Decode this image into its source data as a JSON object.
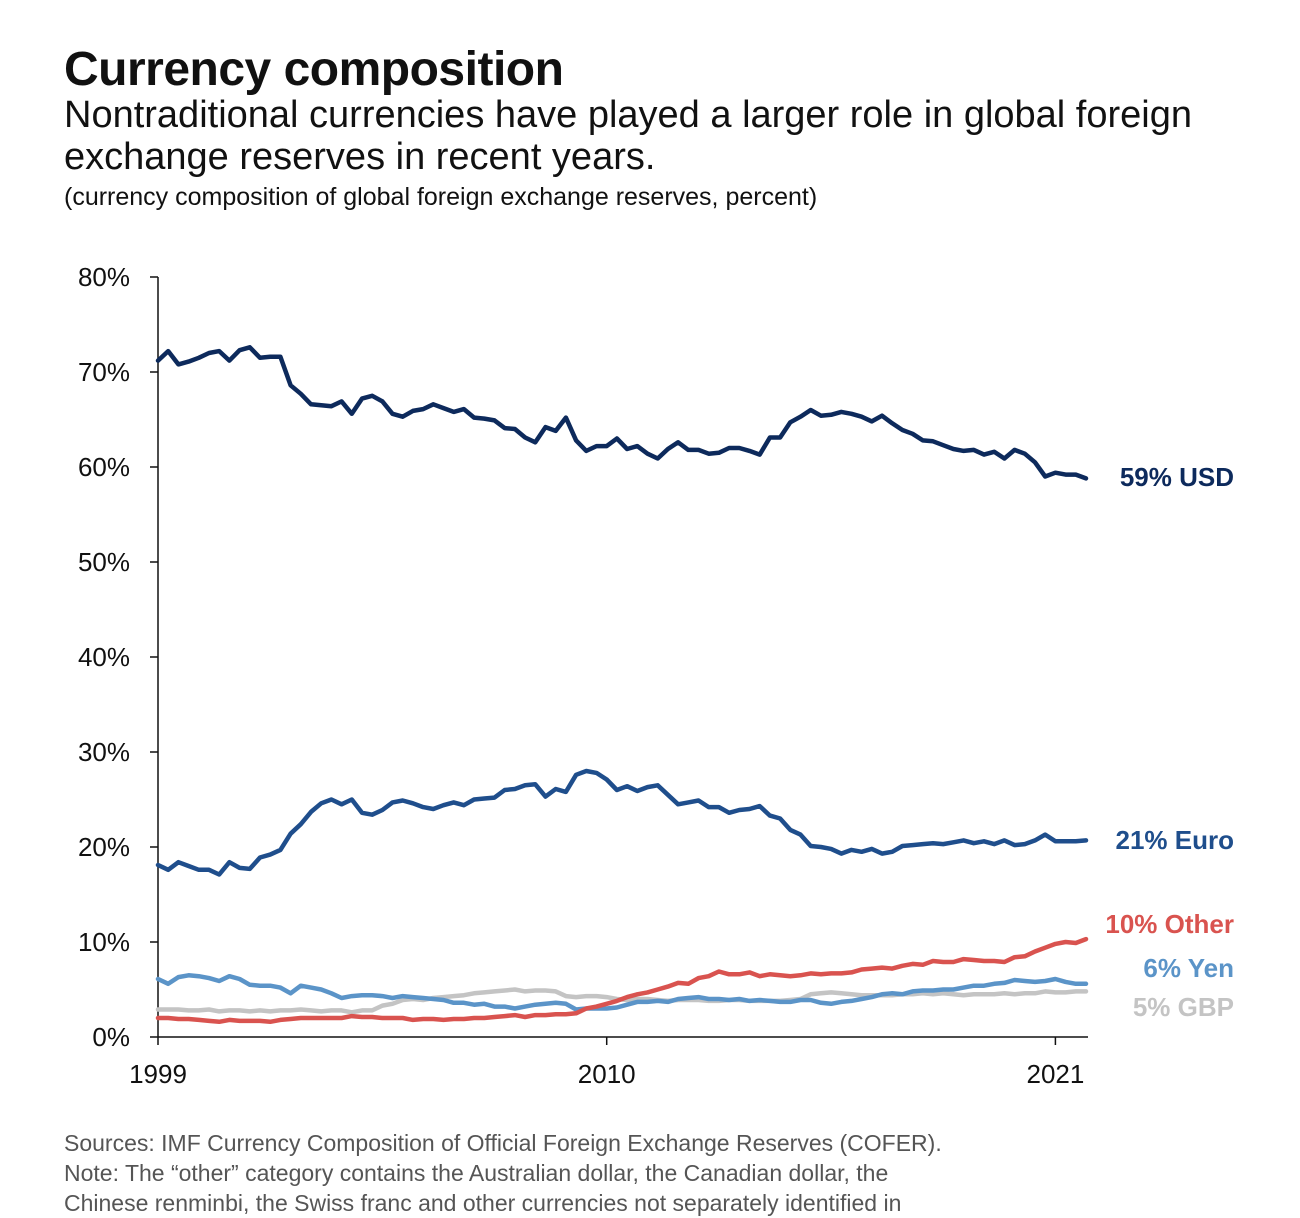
{
  "header": {
    "title": "Currency composition",
    "subtitle": "Nontraditional currencies have played a larger role in global foreign exchange reserves in recent years.",
    "unit_note": "(currency composition of global foreign exchange reserves, percent)"
  },
  "footer": {
    "sources": "Sources: IMF Currency Composition of Official Foreign Exchange Reserves (COFER).",
    "note_line1": "Note: The “other” category contains the Australian dollar, the Canadian dollar, the",
    "note_line2": "Chinese renminbi, the Swiss franc and other currencies not separately identified in"
  },
  "chart_data": {
    "type": "line",
    "title": "Currency composition",
    "xlabel": "",
    "ylabel": "",
    "x_ticks": [
      "1999",
      "2010",
      "2021"
    ],
    "y_ticks": [
      "0%",
      "10%",
      "20%",
      "30%",
      "40%",
      "50%",
      "60%",
      "70%",
      "80%"
    ],
    "ylim": [
      0,
      80
    ],
    "x_start": 1999,
    "x_step": 0.25,
    "series": [
      {
        "name": "USD",
        "label": "59% USD",
        "color": "#0d2a5c",
        "values": [
          71.2,
          72.2,
          70.8,
          71.1,
          71.5,
          72.0,
          72.2,
          71.2,
          72.3,
          72.6,
          71.5,
          71.6,
          71.6,
          68.6,
          67.7,
          66.6,
          66.5,
          66.4,
          66.9,
          65.6,
          67.2,
          67.5,
          66.9,
          65.6,
          65.3,
          65.9,
          66.1,
          66.6,
          66.2,
          65.8,
          66.1,
          65.2,
          65.1,
          64.9,
          64.1,
          64.0,
          63.1,
          62.6,
          64.2,
          63.8,
          65.2,
          62.8,
          61.7,
          62.2,
          62.2,
          63.0,
          61.9,
          62.2,
          61.4,
          60.9,
          61.9,
          62.6,
          61.8,
          61.8,
          61.4,
          61.5,
          62.0,
          62.0,
          61.7,
          61.3,
          63.1,
          63.1,
          64.7,
          65.3,
          66.0,
          65.4,
          65.5,
          65.8,
          65.6,
          65.3,
          64.8,
          65.4,
          64.6,
          63.9,
          63.5,
          62.8,
          62.7,
          62.3,
          61.9,
          61.7,
          61.8,
          61.3,
          61.6,
          60.9,
          61.8,
          61.4,
          60.5,
          59.0,
          59.4,
          59.2,
          59.2,
          58.8
        ]
      },
      {
        "name": "Euro",
        "label": "21% Euro",
        "color": "#1f4e8c",
        "values": [
          18.1,
          17.6,
          18.4,
          18.0,
          17.6,
          17.6,
          17.1,
          18.4,
          17.8,
          17.7,
          18.9,
          19.2,
          19.7,
          21.4,
          22.4,
          23.7,
          24.6,
          25.0,
          24.5,
          25.0,
          23.6,
          23.4,
          23.9,
          24.7,
          24.9,
          24.6,
          24.2,
          24.0,
          24.4,
          24.7,
          24.4,
          25.0,
          25.1,
          25.2,
          26.0,
          26.1,
          26.5,
          26.6,
          25.3,
          26.1,
          25.8,
          27.6,
          28.0,
          27.8,
          27.1,
          26.0,
          26.4,
          25.9,
          26.3,
          26.5,
          25.5,
          24.5,
          24.7,
          24.9,
          24.2,
          24.2,
          23.6,
          23.9,
          24.0,
          24.3,
          23.3,
          23.0,
          21.8,
          21.3,
          20.1,
          20.0,
          19.8,
          19.3,
          19.7,
          19.5,
          19.8,
          19.3,
          19.5,
          20.1,
          20.2,
          20.3,
          20.4,
          20.3,
          20.5,
          20.7,
          20.4,
          20.6,
          20.3,
          20.7,
          20.2,
          20.3,
          20.7,
          21.3,
          20.6,
          20.6,
          20.6,
          20.7
        ]
      },
      {
        "name": "Other",
        "label": "10% Other",
        "color": "#d9534f",
        "values": [
          2.0,
          2.0,
          1.9,
          1.9,
          1.8,
          1.7,
          1.6,
          1.8,
          1.7,
          1.7,
          1.7,
          1.6,
          1.8,
          1.9,
          2.0,
          2.0,
          2.0,
          2.0,
          2.0,
          2.2,
          2.1,
          2.1,
          2.0,
          2.0,
          2.0,
          1.8,
          1.9,
          1.9,
          1.8,
          1.9,
          1.9,
          2.0,
          2.0,
          2.1,
          2.2,
          2.3,
          2.1,
          2.3,
          2.3,
          2.4,
          2.4,
          2.5,
          3.0,
          3.2,
          3.5,
          3.8,
          4.2,
          4.5,
          4.7,
          5.0,
          5.3,
          5.7,
          5.6,
          6.2,
          6.4,
          6.9,
          6.6,
          6.6,
          6.8,
          6.4,
          6.6,
          6.5,
          6.4,
          6.5,
          6.7,
          6.6,
          6.7,
          6.7,
          6.8,
          7.1,
          7.2,
          7.3,
          7.2,
          7.5,
          7.7,
          7.6,
          8.0,
          7.9,
          7.9,
          8.2,
          8.1,
          8.0,
          8.0,
          7.9,
          8.4,
          8.5,
          9.0,
          9.4,
          9.8,
          10.0,
          9.9,
          10.3
        ]
      },
      {
        "name": "Yen",
        "label": "6% Yen",
        "color": "#5b94c8",
        "values": [
          6.1,
          5.6,
          6.3,
          6.5,
          6.4,
          6.2,
          5.9,
          6.4,
          6.1,
          5.5,
          5.4,
          5.4,
          5.2,
          4.6,
          5.4,
          5.2,
          5.0,
          4.6,
          4.1,
          4.3,
          4.4,
          4.4,
          4.3,
          4.1,
          4.3,
          4.2,
          4.1,
          4.0,
          3.9,
          3.6,
          3.6,
          3.4,
          3.5,
          3.2,
          3.2,
          3.0,
          3.2,
          3.4,
          3.5,
          3.6,
          3.5,
          2.9,
          3.0,
          3.0,
          3.0,
          3.1,
          3.4,
          3.7,
          3.7,
          3.8,
          3.7,
          4.0,
          4.1,
          4.2,
          4.0,
          4.0,
          3.9,
          4.0,
          3.8,
          3.9,
          3.8,
          3.7,
          3.7,
          3.9,
          3.9,
          3.6,
          3.5,
          3.7,
          3.8,
          4.0,
          4.2,
          4.5,
          4.6,
          4.5,
          4.8,
          4.9,
          4.9,
          5.0,
          5.0,
          5.2,
          5.4,
          5.4,
          5.6,
          5.7,
          6.0,
          5.9,
          5.8,
          5.9,
          6.1,
          5.8,
          5.6,
          5.6
        ]
      },
      {
        "name": "GBP",
        "label": "5% GBP",
        "color": "#c4c4c4",
        "values": [
          2.9,
          2.9,
          2.9,
          2.8,
          2.8,
          2.9,
          2.7,
          2.8,
          2.8,
          2.7,
          2.8,
          2.7,
          2.8,
          2.8,
          2.9,
          2.8,
          2.7,
          2.8,
          2.8,
          2.6,
          2.8,
          2.8,
          3.3,
          3.5,
          3.9,
          4.0,
          3.9,
          4.1,
          4.2,
          4.3,
          4.4,
          4.6,
          4.7,
          4.8,
          4.9,
          5.0,
          4.8,
          4.9,
          4.9,
          4.8,
          4.3,
          4.2,
          4.3,
          4.3,
          4.2,
          4.0,
          3.9,
          4.0,
          4.0,
          3.9,
          3.8,
          3.9,
          3.9,
          3.9,
          3.8,
          3.8,
          3.9,
          3.9,
          3.8,
          3.8,
          3.8,
          3.8,
          3.9,
          4.0,
          4.5,
          4.6,
          4.7,
          4.6,
          4.5,
          4.4,
          4.4,
          4.4,
          4.4,
          4.5,
          4.5,
          4.6,
          4.5,
          4.6,
          4.5,
          4.4,
          4.5,
          4.5,
          4.5,
          4.6,
          4.5,
          4.6,
          4.6,
          4.8,
          4.7,
          4.7,
          4.8,
          4.8
        ]
      }
    ]
  }
}
